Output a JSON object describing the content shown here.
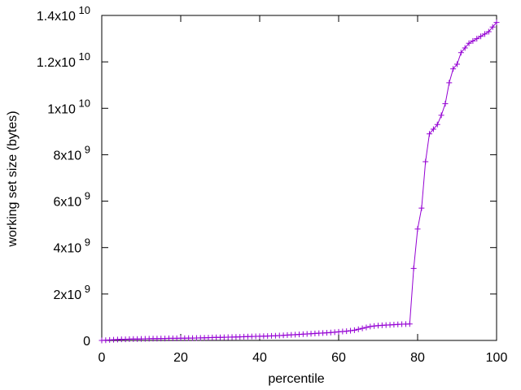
{
  "chart_data": {
    "type": "line",
    "xlabel": "percentile",
    "ylabel": "working set size (bytes)",
    "xlim": [
      0,
      100
    ],
    "ylim": [
      0,
      14000000000
    ],
    "grid": false,
    "legend": "none",
    "colors": {
      "series": "#9400d3",
      "frame": "#000000"
    },
    "x_ticks": [
      {
        "value": 0,
        "label": "0"
      },
      {
        "value": 20,
        "label": "20"
      },
      {
        "value": 40,
        "label": "40"
      },
      {
        "value": 60,
        "label": "60"
      },
      {
        "value": 80,
        "label": "80"
      },
      {
        "value": 100,
        "label": "100"
      }
    ],
    "y_ticks": [
      {
        "value": 0,
        "base": "0",
        "exp": ""
      },
      {
        "value": 2000000000,
        "base": "2x10",
        "exp": "9"
      },
      {
        "value": 4000000000,
        "base": "4x10",
        "exp": "9"
      },
      {
        "value": 6000000000,
        "base": "6x10",
        "exp": "9"
      },
      {
        "value": 8000000000,
        "base": "8x10",
        "exp": "9"
      },
      {
        "value": 10000000000,
        "base": "1x10",
        "exp": "10"
      },
      {
        "value": 12000000000,
        "base": "1.2x10",
        "exp": "10"
      },
      {
        "value": 14000000000,
        "base": "1.4x10",
        "exp": "10"
      }
    ],
    "series": [
      {
        "x": [
          0,
          1,
          2,
          3,
          4,
          5,
          6,
          7,
          8,
          9,
          10,
          11,
          12,
          13,
          14,
          15,
          16,
          17,
          18,
          19,
          20,
          21,
          22,
          23,
          24,
          25,
          26,
          27,
          28,
          29,
          30,
          31,
          32,
          33,
          34,
          35,
          36,
          37,
          38,
          39,
          40,
          41,
          42,
          43,
          44,
          45,
          46,
          47,
          48,
          49,
          50,
          51,
          52,
          53,
          54,
          55,
          56,
          57,
          58,
          59,
          60,
          61,
          62,
          63,
          64,
          65,
          66,
          67,
          68,
          69,
          70,
          71,
          72,
          73,
          74,
          75,
          76,
          77,
          78,
          79,
          80,
          81,
          82,
          83,
          84,
          85,
          86,
          87,
          88,
          89,
          90,
          91,
          92,
          93,
          94,
          95,
          96,
          97,
          98,
          99,
          100
        ],
        "values": [
          0,
          10000000,
          20000000,
          30000000,
          40000000,
          50000000,
          50000000,
          55000000,
          60000000,
          60000000,
          65000000,
          70000000,
          75000000,
          80000000,
          80000000,
          85000000,
          85000000,
          90000000,
          90000000,
          90000000,
          95000000,
          95000000,
          100000000,
          100000000,
          105000000,
          110000000,
          115000000,
          120000000,
          125000000,
          130000000,
          130000000,
          135000000,
          140000000,
          145000000,
          150000000,
          155000000,
          160000000,
          165000000,
          170000000,
          175000000,
          180000000,
          185000000,
          190000000,
          195000000,
          200000000,
          210000000,
          220000000,
          230000000,
          240000000,
          250000000,
          260000000,
          270000000,
          280000000,
          290000000,
          300000000,
          310000000,
          320000000,
          330000000,
          340000000,
          355000000,
          370000000,
          385000000,
          400000000,
          420000000,
          440000000,
          480000000,
          520000000,
          560000000,
          600000000,
          620000000,
          640000000,
          650000000,
          660000000,
          670000000,
          680000000,
          690000000,
          700000000,
          705000000,
          710000000,
          3100000000,
          4800000000,
          5700000000,
          7700000000,
          8900000000,
          9100000000,
          9300000000,
          9700000000,
          10200000000,
          11100000000,
          11700000000,
          11900000000,
          12400000000,
          12600000000,
          12800000000,
          12900000000,
          13000000000,
          13100000000,
          13200000000,
          13300000000,
          13500000000,
          13700000000
        ]
      }
    ]
  }
}
